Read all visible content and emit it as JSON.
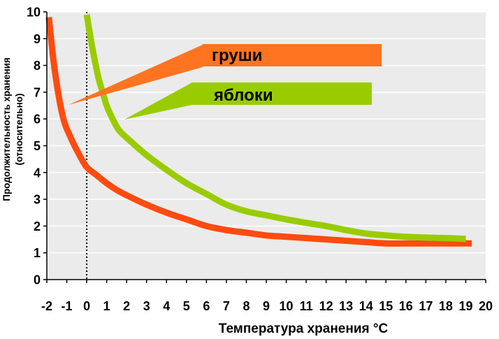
{
  "chart_data": {
    "type": "line",
    "xlabel": "Температура хранения °C",
    "ylabel_line1": "Продолжительность хранения",
    "ylabel_line2": "(относительно)",
    "xlim": [
      -2,
      20
    ],
    "ylim": [
      0,
      10
    ],
    "x_ticks": [
      -2,
      -1,
      0,
      1,
      2,
      3,
      4,
      5,
      6,
      7,
      8,
      9,
      10,
      11,
      12,
      13,
      14,
      15,
      16,
      17,
      18,
      19,
      20
    ],
    "y_ticks": [
      0,
      1,
      2,
      3,
      4,
      5,
      6,
      7,
      8,
      9,
      10
    ],
    "grid": "horizontal",
    "plot_background": "#ebebeb",
    "zero_line": "dotted vertical at x=0",
    "series": [
      {
        "name": "груши",
        "color": "#ff4b10",
        "callout_color": "#ff7420",
        "x": [
          -1.9,
          -1.6,
          -1.2,
          -0.8,
          -0.4,
          0,
          0.5,
          1,
          1.5,
          2,
          3,
          4,
          5,
          6,
          7,
          8,
          9,
          10,
          11,
          12,
          13,
          14,
          15,
          16,
          17,
          18,
          19,
          19.3
        ],
        "values": [
          9.8,
          7.8,
          6.1,
          5.3,
          4.7,
          4.2,
          3.9,
          3.6,
          3.35,
          3.15,
          2.8,
          2.5,
          2.25,
          2.0,
          1.85,
          1.75,
          1.65,
          1.6,
          1.55,
          1.5,
          1.45,
          1.4,
          1.35,
          1.35,
          1.35,
          1.35,
          1.35,
          1.35
        ]
      },
      {
        "name": "яблоки",
        "color": "#99cc00",
        "callout_color": "#99cc00",
        "x": [
          0,
          0.2,
          0.4,
          0.6,
          0.8,
          1,
          1.3,
          1.6,
          2,
          3,
          4,
          5,
          6,
          7,
          8,
          9,
          10,
          11,
          12,
          13,
          14,
          15,
          16,
          17,
          18,
          19
        ],
        "values": [
          9.9,
          9.0,
          8.2,
          7.5,
          7.0,
          6.5,
          6.0,
          5.6,
          5.3,
          4.65,
          4.1,
          3.6,
          3.2,
          2.8,
          2.55,
          2.4,
          2.25,
          2.12,
          2.0,
          1.85,
          1.72,
          1.65,
          1.6,
          1.57,
          1.55,
          1.52
        ]
      }
    ]
  }
}
